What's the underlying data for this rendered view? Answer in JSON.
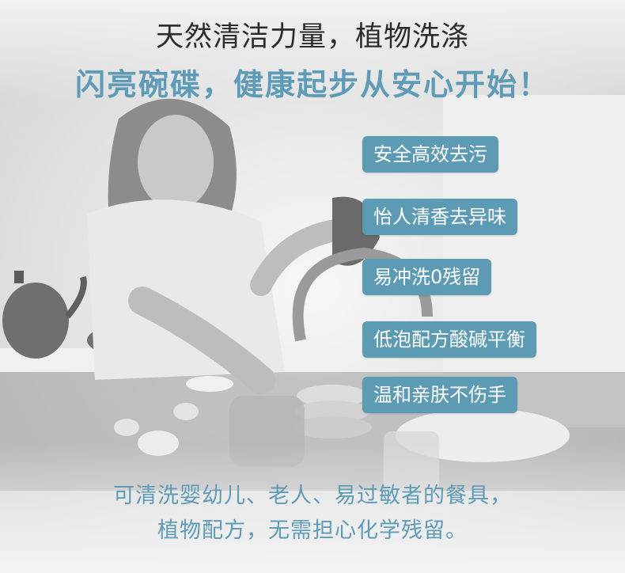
{
  "headline": {
    "line1": "天然清洁力量，植物洗涤",
    "line2": "闪亮碗碟，健康起步从安心开始！"
  },
  "feature_tags": [
    "安全高效去污",
    "怡人清香去异味",
    "易冲洗0残留",
    "低泡配方酸碱平衡",
    "温和亲肤不伤手"
  ],
  "footer": {
    "line1": "可清洗婴幼儿、老人、易过敏者的餐具，",
    "line2": "植物配方，无需担心化学残留。"
  },
  "colors": {
    "accent": "#5d9bb5",
    "headline_dark": "#2b2b2b",
    "tag_text": "#ffffff"
  }
}
